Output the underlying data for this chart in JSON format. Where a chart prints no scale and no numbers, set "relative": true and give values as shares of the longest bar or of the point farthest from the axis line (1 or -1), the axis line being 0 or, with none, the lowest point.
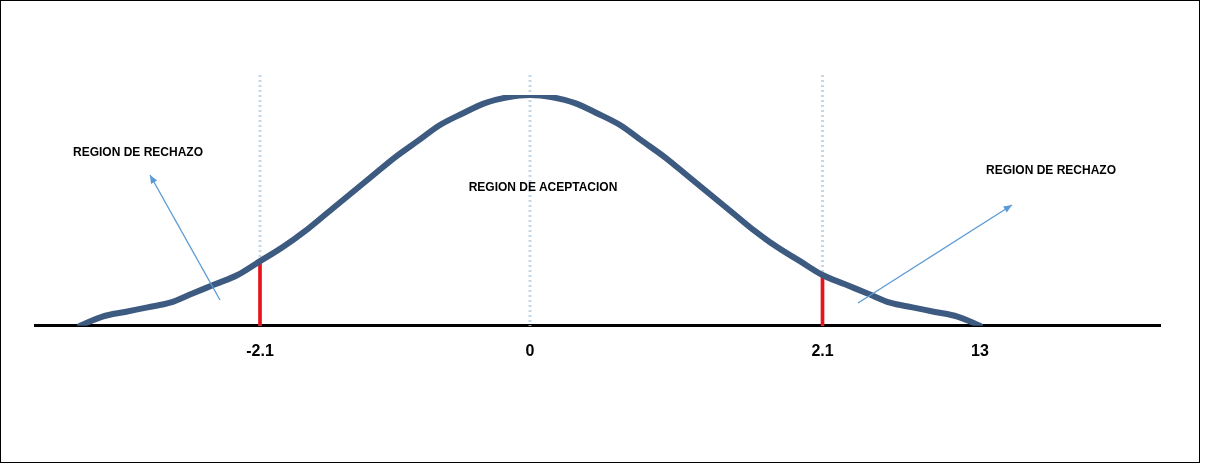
{
  "chart_data": {
    "type": "line",
    "relative": true,
    "marker": "none",
    "legend": false,
    "categories": [
      null,
      null,
      null,
      null,
      null,
      null,
      null,
      null,
      null,
      null,
      "-2.1",
      null,
      null,
      null,
      null,
      null,
      null,
      null,
      null,
      null,
      null,
      null,
      "0",
      null,
      null,
      null,
      null,
      null,
      null,
      null,
      null,
      null,
      null,
      null,
      null,
      "2.1",
      null,
      null,
      null,
      null,
      null,
      null,
      "13",
      null,
      null,
      null,
      null,
      null,
      null,
      null,
      null
    ],
    "series": [
      {
        "color": "#3d5a80",
        "values": [
          null,
          null,
          0,
          0.04,
          0.06,
          0.08,
          0.1,
          0.14,
          0.18,
          0.22,
          0.28,
          0.34,
          0.41,
          0.49,
          0.57,
          0.65,
          0.73,
          0.8,
          0.87,
          0.92,
          0.965,
          0.99,
          1,
          0.99,
          0.965,
          0.92,
          0.87,
          0.8,
          0.73,
          0.65,
          0.57,
          0.49,
          0.41,
          0.34,
          0.28,
          0.22,
          0.18,
          0.14,
          0.1,
          0.08,
          0.06,
          0.04,
          0,
          null,
          null,
          null,
          null,
          null,
          null,
          null,
          null
        ]
      },
      {
        "type": "bar",
        "color": "#e8141c",
        "values": [
          null,
          null,
          null,
          null,
          null,
          null,
          null,
          null,
          null,
          null,
          0.28,
          null,
          null,
          null,
          null,
          null,
          null,
          null,
          null,
          null,
          null,
          null,
          null,
          null,
          null,
          null,
          null,
          null,
          null,
          null,
          null,
          null,
          null,
          null,
          null,
          0.22,
          null,
          null,
          null,
          null,
          null,
          null,
          null,
          null,
          null,
          null,
          null,
          null,
          null,
          null,
          null
        ]
      }
    ],
    "ref_lines": [
      {
        "axis": "x",
        "value": "-2.1",
        "color": "#c5d8e8",
        "line_style": "dotted"
      },
      {
        "axis": "x",
        "value": "0",
        "color": "#c5d8e8",
        "line_style": "dotted"
      },
      {
        "axis": "x",
        "value": "2.1",
        "color": "#c5d8e8",
        "line_style": "dotted"
      }
    ],
    "annotations": [
      "REGION DE RECHAZO",
      "REGION DE ACEPTACION",
      "REGION DE RECHAZO"
    ]
  }
}
